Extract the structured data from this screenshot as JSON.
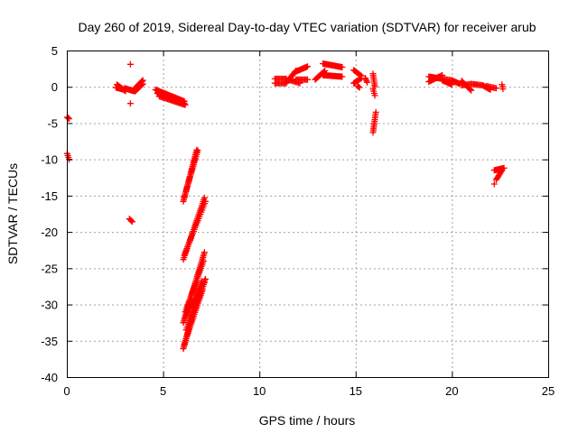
{
  "chart_data": {
    "type": "scatter",
    "title": "Day 260 of 2019, Sidereal Day-to-day VTEC variation (SDTVAR) for receiver arub",
    "xlabel": "GPS time / hours",
    "ylabel": "SDTVAR / TECUs",
    "xlim": [
      0,
      25
    ],
    "ylim": [
      -40,
      5
    ],
    "xticks": [
      0,
      5,
      10,
      15,
      20,
      25
    ],
    "yticks": [
      5,
      0,
      -5,
      -10,
      -15,
      -20,
      -25,
      -30,
      -35,
      -40
    ],
    "xtick_labels": [
      "0",
      "5",
      "10",
      "15",
      "20",
      "25"
    ],
    "ytick_labels": [
      "5",
      "0",
      "-5",
      "-10",
      "-15",
      "-20",
      "-25",
      "-30",
      "-35",
      "-40"
    ],
    "grid": true,
    "marker": "+",
    "color": "#ff0000",
    "segments": [
      {
        "x0": 0.02,
        "y0": -4.2,
        "x1": 0.12,
        "y1": -4.4,
        "n": 4
      },
      {
        "x0": 0.02,
        "y0": -9.2,
        "x1": 0.12,
        "y1": -10.0,
        "n": 4
      },
      {
        "x0": 2.55,
        "y0": -0.1,
        "x1": 3.0,
        "y1": -0.4,
        "n": 14
      },
      {
        "x0": 2.6,
        "y0": 0.3,
        "x1": 3.05,
        "y1": -0.6,
        "n": 10
      },
      {
        "x0": 3.0,
        "y0": -0.2,
        "x1": 3.5,
        "y1": -0.6,
        "n": 12
      },
      {
        "x0": 3.3,
        "y0": 3.1,
        "x1": 3.32,
        "y1": 3.1,
        "n": 1
      },
      {
        "x0": 3.3,
        "y0": -2.3,
        "x1": 3.32,
        "y1": -2.3,
        "n": 1
      },
      {
        "x0": 3.25,
        "y0": -18.2,
        "x1": 3.4,
        "y1": -18.6,
        "n": 4
      },
      {
        "x0": 3.55,
        "y0": -0.2,
        "x1": 3.95,
        "y1": 0.9,
        "n": 12
      },
      {
        "x0": 3.55,
        "y0": -0.6,
        "x1": 3.95,
        "y1": 0.4,
        "n": 10
      },
      {
        "x0": 4.6,
        "y0": -0.4,
        "x1": 6.1,
        "y1": -2.0,
        "n": 30
      },
      {
        "x0": 4.7,
        "y0": -0.9,
        "x1": 6.1,
        "y1": -2.3,
        "n": 26
      },
      {
        "x0": 4.8,
        "y0": -1.3,
        "x1": 6.15,
        "y1": -2.5,
        "n": 22
      },
      {
        "x0": 6.05,
        "y0": -15.8,
        "x1": 6.75,
        "y1": -8.7,
        "n": 32
      },
      {
        "x0": 6.1,
        "y0": -15.2,
        "x1": 6.8,
        "y1": -8.8,
        "n": 24
      },
      {
        "x0": 6.05,
        "y0": -23.8,
        "x1": 7.15,
        "y1": -15.3,
        "n": 34
      },
      {
        "x0": 6.1,
        "y0": -23.2,
        "x1": 7.2,
        "y1": -15.8,
        "n": 26
      },
      {
        "x0": 6.05,
        "y0": -32.5,
        "x1": 7.15,
        "y1": -22.8,
        "n": 42
      },
      {
        "x0": 6.1,
        "y0": -32.0,
        "x1": 7.2,
        "y1": -26.5,
        "n": 30
      },
      {
        "x0": 6.15,
        "y0": -31.0,
        "x1": 7.1,
        "y1": -24.0,
        "n": 28
      },
      {
        "x0": 6.05,
        "y0": -36.1,
        "x1": 7.0,
        "y1": -26.8,
        "n": 42
      },
      {
        "x0": 6.1,
        "y0": -35.5,
        "x1": 7.05,
        "y1": -28.0,
        "n": 30
      },
      {
        "x0": 6.2,
        "y0": -33.5,
        "x1": 7.15,
        "y1": -27.0,
        "n": 26
      },
      {
        "x0": 10.8,
        "y0": 1.1,
        "x1": 11.4,
        "y1": 1.1,
        "n": 10
      },
      {
        "x0": 10.8,
        "y0": 0.5,
        "x1": 11.4,
        "y1": 0.5,
        "n": 10
      },
      {
        "x0": 11.4,
        "y0": 0.6,
        "x1": 11.9,
        "y1": 2.2,
        "n": 12
      },
      {
        "x0": 11.5,
        "y0": 1.0,
        "x1": 12.1,
        "y1": 0.5,
        "n": 10
      },
      {
        "x0": 11.9,
        "y0": 2.1,
        "x1": 12.5,
        "y1": 2.8,
        "n": 12
      },
      {
        "x0": 11.9,
        "y0": 1.0,
        "x1": 12.5,
        "y1": 1.0,
        "n": 10
      },
      {
        "x0": 13.3,
        "y0": 3.2,
        "x1": 14.3,
        "y1": 2.7,
        "n": 18
      },
      {
        "x0": 13.3,
        "y0": 1.6,
        "x1": 14.3,
        "y1": 1.4,
        "n": 18
      },
      {
        "x0": 12.9,
        "y0": 1.0,
        "x1": 13.4,
        "y1": 2.2,
        "n": 10
      },
      {
        "x0": 14.9,
        "y0": 2.3,
        "x1": 15.3,
        "y1": 1.5,
        "n": 8
      },
      {
        "x0": 14.9,
        "y0": 0.5,
        "x1": 15.3,
        "y1": 1.2,
        "n": 8
      },
      {
        "x0": 15.1,
        "y0": 0.1,
        "x1": 15.2,
        "y1": -0.1,
        "n": 3
      },
      {
        "x0": 15.5,
        "y0": 1.2,
        "x1": 15.6,
        "y1": 0.6,
        "n": 4
      },
      {
        "x0": 15.9,
        "y0": 1.8,
        "x1": 16.0,
        "y1": 0.0,
        "n": 8
      },
      {
        "x0": 15.9,
        "y0": -0.3,
        "x1": 16.0,
        "y1": -1.2,
        "n": 4
      },
      {
        "x0": 15.9,
        "y0": -6.3,
        "x1": 16.05,
        "y1": -3.5,
        "n": 12
      },
      {
        "x0": 18.8,
        "y0": 1.4,
        "x1": 19.5,
        "y1": 1.1,
        "n": 14
      },
      {
        "x0": 18.8,
        "y0": 0.7,
        "x1": 19.5,
        "y1": 1.6,
        "n": 12
      },
      {
        "x0": 19.5,
        "y0": 0.9,
        "x1": 20.0,
        "y1": 0.3,
        "n": 10
      },
      {
        "x0": 19.5,
        "y0": 1.1,
        "x1": 20.0,
        "y1": 0.9,
        "n": 8
      },
      {
        "x0": 20.0,
        "y0": 0.9,
        "x1": 20.4,
        "y1": 0.4,
        "n": 8
      },
      {
        "x0": 20.5,
        "y0": 0.8,
        "x1": 21.0,
        "y1": -0.5,
        "n": 12
      },
      {
        "x0": 20.5,
        "y0": 0.2,
        "x1": 21.0,
        "y1": 0.4,
        "n": 8
      },
      {
        "x0": 21.0,
        "y0": 0.4,
        "x1": 21.6,
        "y1": 0.2,
        "n": 10
      },
      {
        "x0": 21.6,
        "y0": 0.2,
        "x1": 22.0,
        "y1": -0.4,
        "n": 8
      },
      {
        "x0": 21.8,
        "y0": 0.1,
        "x1": 22.3,
        "y1": -0.2,
        "n": 8
      },
      {
        "x0": 22.6,
        "y0": 0.3,
        "x1": 22.65,
        "y1": -0.3,
        "n": 3
      },
      {
        "x0": 22.2,
        "y0": -11.5,
        "x1": 22.7,
        "y1": -11.2,
        "n": 10
      },
      {
        "x0": 22.3,
        "y0": -12.8,
        "x1": 22.6,
        "y1": -11.5,
        "n": 8
      },
      {
        "x0": 22.2,
        "y0": -13.4,
        "x1": 22.25,
        "y1": -13.4,
        "n": 1
      }
    ]
  }
}
